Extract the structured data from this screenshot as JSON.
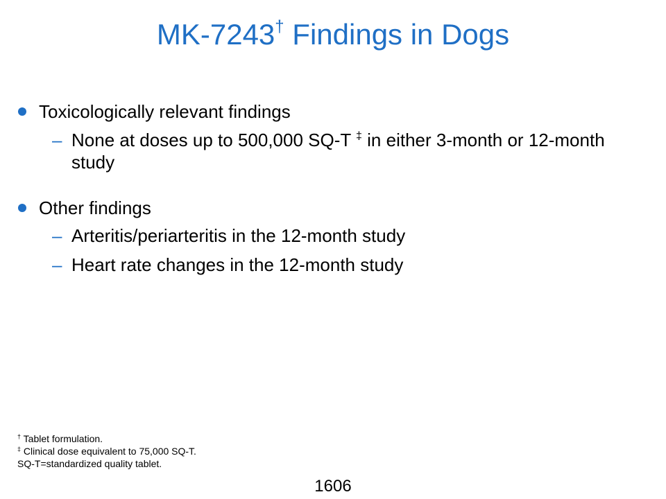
{
  "slide": {
    "title_main": "MK-7243",
    "title_mark": "†",
    "title_rest": " Findings in Dogs",
    "page_number": "1606",
    "accent_color": "#1f6fc5"
  },
  "bullets": [
    {
      "text": "Toxicologically relevant findings",
      "subs": [
        {
          "before": "None at doses up to 500,000 SQ-T ",
          "mark": "‡",
          "after": " in either 3-month or 12-month study"
        }
      ]
    },
    {
      "text": "Other findings",
      "subs": [
        {
          "text": "Arteritis/periarteritis in the 12-month study"
        },
        {
          "text": "Heart rate changes in the 12-month study"
        }
      ]
    }
  ],
  "dash_glyph": "–",
  "footnotes": [
    {
      "mark": "†",
      "text": " Tablet formulation."
    },
    {
      "mark": "‡",
      "text": " Clinical dose equivalent to 75,000 SQ-T."
    },
    {
      "mark": "",
      "text": "SQ-T=standardized quality tablet."
    }
  ]
}
